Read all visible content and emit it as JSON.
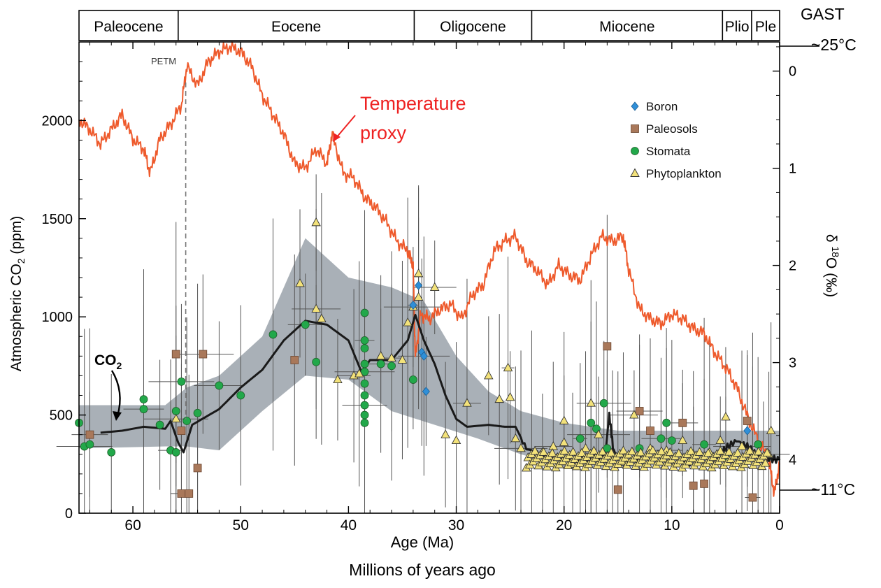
{
  "chart_data": {
    "type": "scatter",
    "epochs": [
      "Paleocene",
      "Eocene",
      "Oligocene",
      "Miocene",
      "Plio",
      "Ple"
    ],
    "epoch_boundaries_ma": [
      65,
      55.8,
      33.9,
      23,
      5.3,
      2.6,
      0
    ],
    "x_axis": {
      "label": "Age (Ma)",
      "sublabel": "Millions of years ago",
      "range": [
        65,
        0
      ],
      "ticks": [
        "60",
        "50",
        "40",
        "30",
        "20",
        "10",
        "0"
      ],
      "tick_values": [
        60,
        50,
        40,
        30,
        20,
        10,
        0
      ]
    },
    "y_axis_left": {
      "label": "Atmospheric CO",
      "label_sub": "2",
      "label_unit": " (ppm)",
      "range": [
        0,
        2400
      ],
      "ticks": [
        "0",
        "500",
        "1000",
        "1500",
        "2000"
      ],
      "tick_values": [
        0,
        500,
        1000,
        1500,
        2000
      ]
    },
    "y_axis_right": {
      "label": "δ 18O (‰)",
      "label_delta": "δ ",
      "label_sup": "18",
      "label_rest": "O (‰)",
      "range": [
        -0.3,
        4.55
      ],
      "ticks": [
        "0",
        "1",
        "2",
        "3",
        "4"
      ],
      "tick_values": [
        0,
        1,
        2,
        3,
        4
      ]
    },
    "annotations": {
      "gast": "GAST",
      "warm": "~25°C",
      "cool": "~11°C",
      "petm": "PETM",
      "temperature_proxy": "Temperature",
      "temperature_proxy_2": "proxy",
      "co2": "CO",
      "co2_sub": "2"
    },
    "legend": [
      {
        "name": "Boron",
        "marker": "diamond",
        "color": "#2f8fd8"
      },
      {
        "name": "Paleosols",
        "marker": "square",
        "color": "#a9785a"
      },
      {
        "name": "Stomata",
        "marker": "circle",
        "color": "#22a84a"
      },
      {
        "name": "Phytoplankton",
        "marker": "triangle",
        "color": "#f3e27a"
      }
    ],
    "colors": {
      "temperature": "#ee5a2c",
      "co2_mean": "#1a1a1a",
      "band": "#9aa2aa",
      "petm_line": "#777777",
      "proxy_label": "#ee2222"
    },
    "temperature_proxy_d18O": [
      [
        65,
        0.5
      ],
      [
        64,
        0.6
      ],
      [
        63,
        0.75
      ],
      [
        62,
        0.6
      ],
      [
        61,
        0.45
      ],
      [
        60,
        0.7
      ],
      [
        59,
        0.8
      ],
      [
        58.4,
        1.05
      ],
      [
        57.5,
        0.7
      ],
      [
        56.5,
        0.55
      ],
      [
        55.5,
        0.35
      ],
      [
        55.0,
        -0.05
      ],
      [
        54,
        0.15
      ],
      [
        53,
        -0.1
      ],
      [
        52,
        -0.2
      ],
      [
        51,
        -0.25
      ],
      [
        50,
        -0.2
      ],
      [
        49,
        -0.05
      ],
      [
        48,
        0.25
      ],
      [
        47,
        0.45
      ],
      [
        46,
        0.65
      ],
      [
        45,
        0.95
      ],
      [
        44,
        1.0
      ],
      [
        43,
        0.8
      ],
      [
        42,
        0.95
      ],
      [
        41.5,
        0.65
      ],
      [
        40.5,
        1.05
      ],
      [
        39.5,
        1.1
      ],
      [
        38.5,
        1.3
      ],
      [
        37.5,
        1.4
      ],
      [
        36.5,
        1.55
      ],
      [
        35.5,
        1.75
      ],
      [
        34.5,
        1.85
      ],
      [
        34.0,
        2.0
      ],
      [
        33.8,
        2.95
      ],
      [
        33.3,
        2.5
      ],
      [
        32.5,
        2.55
      ],
      [
        31.5,
        2.45
      ],
      [
        30.5,
        2.4
      ],
      [
        29.5,
        2.55
      ],
      [
        28.5,
        2.3
      ],
      [
        27.5,
        2.2
      ],
      [
        26.5,
        1.85
      ],
      [
        25.5,
        1.75
      ],
      [
        24.5,
        1.7
      ],
      [
        23.5,
        1.95
      ],
      [
        22.5,
        2.05
      ],
      [
        21.5,
        2.2
      ],
      [
        20.5,
        2.0
      ],
      [
        19.5,
        2.1
      ],
      [
        18.5,
        2.15
      ],
      [
        17.5,
        1.9
      ],
      [
        16.5,
        1.7
      ],
      [
        15.5,
        1.75
      ],
      [
        14.5,
        1.7
      ],
      [
        14.0,
        2.05
      ],
      [
        13,
        2.45
      ],
      [
        12,
        2.55
      ],
      [
        11,
        2.6
      ],
      [
        10,
        2.5
      ],
      [
        9,
        2.55
      ],
      [
        8,
        2.65
      ],
      [
        7,
        2.7
      ],
      [
        6,
        2.9
      ],
      [
        5,
        3.05
      ],
      [
        4,
        3.25
      ],
      [
        3,
        3.55
      ],
      [
        2,
        3.8
      ],
      [
        1,
        4.0
      ],
      [
        0.5,
        4.35
      ],
      [
        0,
        4.05
      ]
    ],
    "co2_mean": [
      [
        63,
        410
      ],
      [
        61,
        420
      ],
      [
        59,
        440
      ],
      [
        57,
        430
      ],
      [
        56.5,
        470
      ],
      [
        55.8,
        360
      ],
      [
        55.3,
        310
      ],
      [
        54.5,
        450
      ],
      [
        52,
        530
      ],
      [
        50,
        640
      ],
      [
        48,
        730
      ],
      [
        46,
        880
      ],
      [
        44,
        980
      ],
      [
        42,
        960
      ],
      [
        40,
        880
      ],
      [
        38.8,
        720
      ],
      [
        38,
        780
      ],
      [
        36,
        780
      ],
      [
        34.5,
        880
      ],
      [
        33.8,
        1010
      ],
      [
        33,
        880
      ],
      [
        32,
        760
      ],
      [
        31,
        600
      ],
      [
        30,
        480
      ],
      [
        29,
        440
      ],
      [
        27,
        450
      ],
      [
        25.5,
        440
      ],
      [
        24.5,
        440
      ],
      [
        23.5,
        330
      ],
      [
        22,
        290
      ],
      [
        20,
        280
      ],
      [
        18,
        270
      ],
      [
        16.2,
        290
      ],
      [
        15.8,
        500
      ],
      [
        15.4,
        310
      ],
      [
        14,
        270
      ],
      [
        12,
        280
      ],
      [
        10,
        260
      ],
      [
        8,
        260
      ],
      [
        6,
        270
      ],
      [
        5,
        330
      ],
      [
        4,
        370
      ],
      [
        3,
        340
      ],
      [
        2,
        290
      ],
      [
        1,
        280
      ],
      [
        0,
        270
      ]
    ],
    "uncertainty_band": {
      "upper": [
        [
          65,
          550
        ],
        [
          57,
          550
        ],
        [
          55,
          640
        ],
        [
          52,
          700
        ],
        [
          48,
          900
        ],
        [
          44,
          1400
        ],
        [
          40,
          1200
        ],
        [
          36,
          1150
        ],
        [
          33,
          1080
        ],
        [
          30,
          800
        ],
        [
          27,
          620
        ],
        [
          24,
          520
        ],
        [
          20,
          460
        ],
        [
          15,
          420
        ],
        [
          10,
          420
        ],
        [
          5,
          420
        ],
        [
          0,
          420
        ]
      ],
      "lower": [
        [
          0,
          270
        ],
        [
          5,
          250
        ],
        [
          10,
          250
        ],
        [
          15,
          230
        ],
        [
          20,
          240
        ],
        [
          24,
          300
        ],
        [
          28,
          380
        ],
        [
          32,
          450
        ],
        [
          36,
          520
        ],
        [
          40,
          680
        ],
        [
          44,
          700
        ],
        [
          48,
          520
        ],
        [
          52,
          320
        ],
        [
          55,
          340
        ],
        [
          57,
          340
        ],
        [
          65,
          330
        ]
      ]
    },
    "proxies": {
      "boron": [
        [
          34,
          1060
        ],
        [
          33.5,
          1160
        ],
        [
          33.2,
          820
        ],
        [
          33.0,
          800
        ],
        [
          32.8,
          620
        ],
        [
          3.0,
          420
        ]
      ],
      "paleosols": [
        [
          64,
          400
        ],
        [
          56,
          810
        ],
        [
          55.5,
          420
        ],
        [
          55.5,
          100
        ],
        [
          54.8,
          100
        ],
        [
          54,
          230
        ],
        [
          53.5,
          810
        ],
        [
          45,
          780
        ],
        [
          16,
          850
        ],
        [
          13,
          520
        ],
        [
          12,
          420
        ],
        [
          15,
          120
        ],
        [
          9,
          460
        ],
        [
          8,
          140
        ],
        [
          7,
          150
        ],
        [
          2.5,
          80
        ],
        [
          3,
          470
        ]
      ],
      "stomata": [
        [
          65,
          460
        ],
        [
          64.5,
          340
        ],
        [
          64,
          350
        ],
        [
          62,
          310
        ],
        [
          59,
          530
        ],
        [
          59,
          580
        ],
        [
          57.5,
          450
        ],
        [
          56.5,
          320
        ],
        [
          56,
          310
        ],
        [
          56,
          520
        ],
        [
          55.5,
          670
        ],
        [
          55,
          470
        ],
        [
          54,
          510
        ],
        [
          52,
          650
        ],
        [
          50,
          600
        ],
        [
          47,
          910
        ],
        [
          44,
          960
        ],
        [
          43,
          770
        ],
        [
          38.5,
          1020
        ],
        [
          38.5,
          880
        ],
        [
          38.5,
          840
        ],
        [
          38.5,
          760
        ],
        [
          38.5,
          720
        ],
        [
          38.5,
          660
        ],
        [
          38.5,
          600
        ],
        [
          38.5,
          550
        ],
        [
          38.5,
          500
        ],
        [
          38.5,
          460
        ],
        [
          37,
          760
        ],
        [
          36,
          750
        ],
        [
          34,
          680
        ],
        [
          18.5,
          380
        ],
        [
          17.5,
          460
        ],
        [
          17,
          430
        ],
        [
          16.3,
          560
        ],
        [
          16,
          330
        ],
        [
          13,
          330
        ],
        [
          11,
          380
        ],
        [
          10.5,
          460
        ],
        [
          10,
          370
        ],
        [
          7,
          350
        ],
        [
          5,
          280
        ],
        [
          2,
          350
        ]
      ],
      "phytoplankton": [
        [
          56,
          480
        ],
        [
          43,
          1480
        ],
        [
          44.5,
          1170
        ],
        [
          43,
          1040
        ],
        [
          42.5,
          990
        ],
        [
          41,
          680
        ],
        [
          39.5,
          700
        ],
        [
          39,
          710
        ],
        [
          37,
          800
        ],
        [
          36,
          790
        ],
        [
          35,
          780
        ],
        [
          34.5,
          970
        ],
        [
          34,
          1050
        ],
        [
          33.5,
          1220
        ],
        [
          33.5,
          1100
        ],
        [
          32,
          1150
        ],
        [
          31,
          400
        ],
        [
          30,
          370
        ],
        [
          29,
          560
        ],
        [
          27,
          700
        ],
        [
          26,
          580
        ],
        [
          25.2,
          740
        ],
        [
          25,
          590
        ],
        [
          24.5,
          380
        ],
        [
          24,
          330
        ],
        [
          23,
          300
        ],
        [
          22,
          310
        ],
        [
          21,
          340
        ],
        [
          20,
          360
        ],
        [
          20,
          470
        ],
        [
          19.2,
          250
        ],
        [
          18,
          330
        ],
        [
          17.5,
          560
        ],
        [
          16.8,
          400
        ],
        [
          15.5,
          300
        ],
        [
          14.5,
          260
        ],
        [
          13.5,
          500
        ],
        [
          12,
          330
        ],
        [
          11,
          300
        ],
        [
          10.5,
          320
        ],
        [
          9,
          370
        ],
        [
          8,
          300
        ],
        [
          6.5,
          310
        ],
        [
          5.5,
          370
        ],
        [
          5,
          490
        ],
        [
          3.5,
          340
        ],
        [
          2.5,
          300
        ],
        [
          1.5,
          280
        ],
        [
          1,
          300
        ],
        [
          0.8,
          420
        ]
      ]
    }
  }
}
